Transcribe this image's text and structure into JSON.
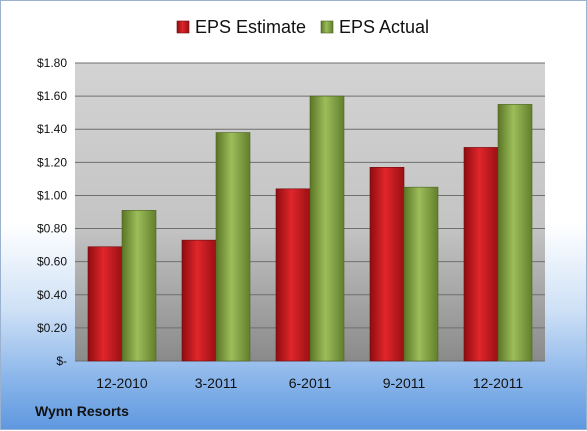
{
  "company": "Wynn Resorts",
  "colors": {
    "estimate": "#c0161c",
    "actual": "#7a9a3a"
  },
  "chart_data": {
    "type": "bar",
    "categories": [
      "12-2010",
      "3-2011",
      "6-2011",
      "9-2011",
      "12-2011"
    ],
    "series": [
      {
        "name": "EPS Estimate",
        "values": [
          0.69,
          0.73,
          1.04,
          1.17,
          1.29
        ]
      },
      {
        "name": "EPS Actual",
        "values": [
          0.91,
          1.38,
          1.6,
          1.05,
          1.55
        ]
      }
    ],
    "yticks": [
      "$-",
      "$0.20",
      "$0.40",
      "$0.60",
      "$0.80",
      "$1.00",
      "$1.20",
      "$1.40",
      "$1.60",
      "$1.80"
    ],
    "ylim": [
      0,
      1.8
    ],
    "grid": true,
    "legend_position": "top"
  }
}
